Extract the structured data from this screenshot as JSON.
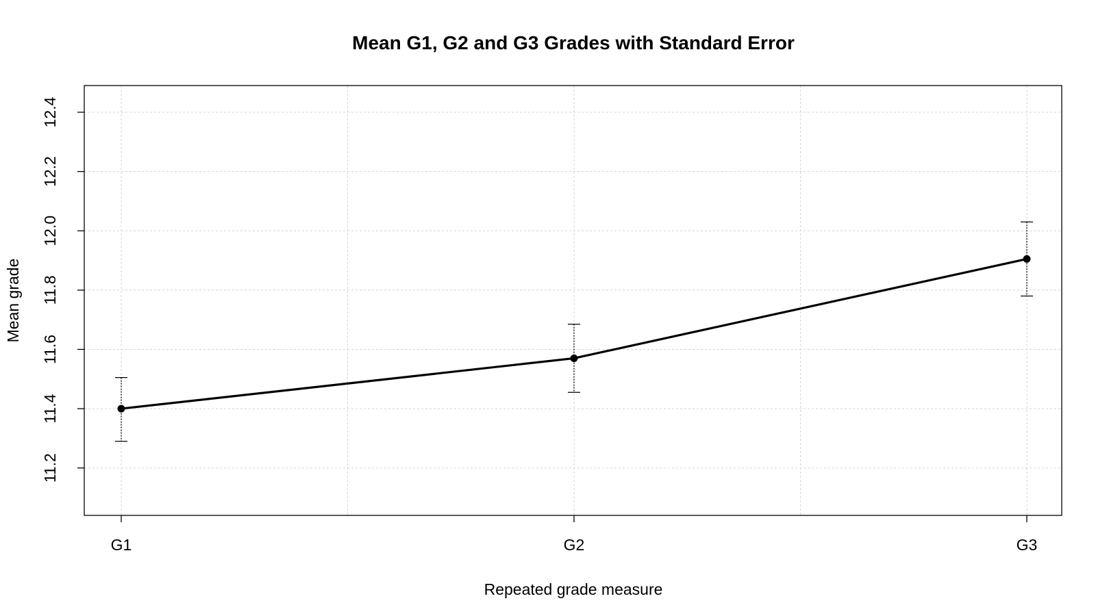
{
  "chart_data": {
    "type": "line",
    "title": "Mean G1, G2 and G3 Grades with Standard Error",
    "xlabel": "Repeated grade measure",
    "ylabel": "Mean grade",
    "categories": [
      "G1",
      "G2",
      "G3"
    ],
    "series": [
      {
        "values": [
          11.4,
          11.57,
          11.905
        ],
        "error_lower": [
          11.29,
          11.455,
          11.78
        ],
        "error_upper": [
          11.505,
          11.685,
          12.03
        ]
      }
    ],
    "ylim": [
      11.04,
      12.49
    ],
    "yticks": [
      "11.2",
      "11.4",
      "11.6",
      "11.8",
      "12.0",
      "12.2",
      "12.4"
    ],
    "grid": true,
    "colors": {
      "line": "#000000",
      "grid": "#d3d3d3",
      "frame": "#000000"
    }
  }
}
